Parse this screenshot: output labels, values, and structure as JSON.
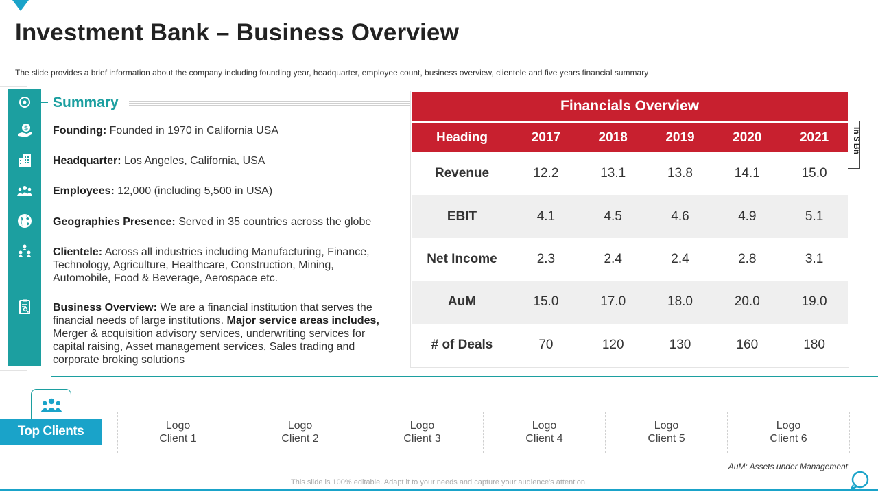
{
  "title": "Investment Bank – Business Overview",
  "subtitle": "The slide provides a brief information about the company including founding year, headquarter, employee count, business overview, clientele and five years financial summary",
  "summary": {
    "heading": "Summary",
    "items": [
      {
        "label": "Founding:",
        "text": " Founded in 1970 in California USA"
      },
      {
        "label": "Headquarter:",
        "text": " Los Angeles, California, USA"
      },
      {
        "label": "Employees:",
        "text": " 12,000 (including 5,500 in USA)"
      },
      {
        "label": "Geographies Presence:",
        "text": " Served in 35 countries across the globe"
      },
      {
        "label": "Clientele:",
        "text": " Across all industries including Manufacturing, Finance, Technology, Agriculture, Healthcare, Construction, Mining, Automobile, Food & Beverage, Aerospace etc."
      },
      {
        "label": "Business Overview:",
        "text": " We are a financial institution that serves the financial needs of large institutions. ",
        "label2": "Major service areas includes,",
        "text2": " Merger & acquisition advisory services, underwriting services for capital raising, Asset management services, Sales trading and corporate broking solutions"
      }
    ],
    "icons": [
      "target-icon",
      "money-hand-icon",
      "building-icon",
      "people-group-icon",
      "globe-icon",
      "network-people-icon",
      "clipboard-icon"
    ]
  },
  "financials": {
    "heading": "Financials Overview",
    "unit": "In $ Bn",
    "columns": [
      "Heading",
      "2017",
      "2018",
      "2019",
      "2020",
      "2021"
    ],
    "rows": [
      {
        "label": "Revenue",
        "values": [
          "12.2",
          "13.1",
          "13.8",
          "14.1",
          "15.0"
        ]
      },
      {
        "label": "EBIT",
        "values": [
          "4.1",
          "4.5",
          "4.6",
          "4.9",
          "5.1"
        ]
      },
      {
        "label": "Net Income",
        "values": [
          "2.3",
          "2.4",
          "2.4",
          "2.8",
          "3.1"
        ]
      },
      {
        "label": "AuM",
        "values": [
          "15.0",
          "17.0",
          "18.0",
          "20.0",
          "19.0"
        ]
      },
      {
        "label": "# of Deals",
        "values": [
          "70",
          "120",
          "130",
          "160",
          "180"
        ]
      }
    ]
  },
  "clients": {
    "label": "Top Clients",
    "items": [
      {
        "line1": "Logo",
        "line2": "Client 1"
      },
      {
        "line1": "Logo",
        "line2": "Client 2"
      },
      {
        "line1": "Logo",
        "line2": "Client 3"
      },
      {
        "line1": "Logo",
        "line2": "Client 4"
      },
      {
        "line1": "Logo",
        "line2": "Client 5"
      },
      {
        "line1": "Logo",
        "line2": "Client 6"
      }
    ]
  },
  "note": "AuM: Assets under Management",
  "footer": "This slide is 100% editable. Adapt it to your needs and capture your audience's attention.",
  "colors": {
    "accent_red": "#c8202f",
    "accent_teal": "#1c9fa0",
    "accent_blue": "#1aa3c9"
  }
}
